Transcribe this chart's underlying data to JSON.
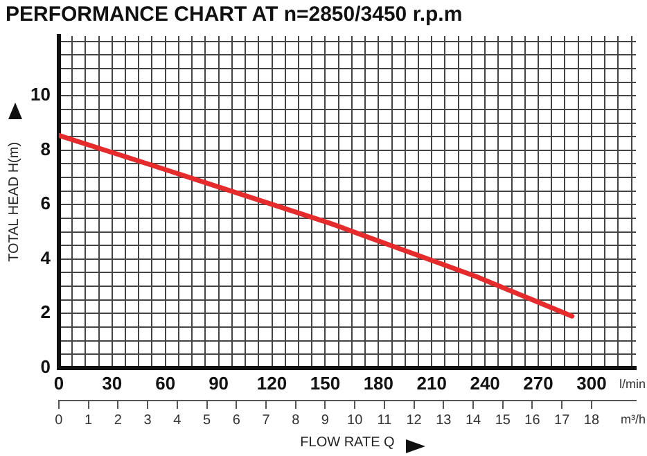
{
  "chart_data": {
    "type": "line",
    "title": "PERFORMANCE CHART AT n=2850/3450 r.p.m",
    "xlabel": "FLOW RATE Q",
    "ylabel": "TOTAL HEAD H(m)",
    "x2label": "m³/h",
    "annotations": [
      "l/min"
    ],
    "x": [
      0,
      51,
      153,
      235,
      289
    ],
    "series": [
      {
        "color": "#e52b2b",
        "values": [
          8.55,
          7.48,
          5.31,
          3.36,
          1.9
        ]
      }
    ],
    "xlim": [
      0,
      325
    ],
    "ylim": [
      0,
      12.2
    ],
    "x2lim": [
      0,
      19.5
    ],
    "xticks": [
      0,
      {
        "value": 7.5,
        "label": null
      },
      {
        "value": 15,
        "label": null
      },
      {
        "value": 22.5,
        "label": null
      },
      30,
      {
        "value": 37.5,
        "label": null
      },
      {
        "value": 45,
        "label": null
      },
      {
        "value": 52.5,
        "label": null
      },
      60,
      {
        "value": 67.5,
        "label": null
      },
      {
        "value": 75,
        "label": null
      },
      {
        "value": 82.5,
        "label": null
      },
      90,
      {
        "value": 97.5,
        "label": null
      },
      {
        "value": 105,
        "label": null
      },
      {
        "value": 112.5,
        "label": null
      },
      120,
      {
        "value": 127.5,
        "label": null
      },
      {
        "value": 135,
        "label": null
      },
      {
        "value": 142.5,
        "label": null
      },
      150,
      {
        "value": 157.5,
        "label": null
      },
      {
        "value": 165,
        "label": null
      },
      {
        "value": 172.5,
        "label": null
      },
      180,
      {
        "value": 187.5,
        "label": null
      },
      {
        "value": 195,
        "label": null
      },
      {
        "value": 202.5,
        "label": null
      },
      210,
      {
        "value": 217.5,
        "label": null
      },
      {
        "value": 225,
        "label": null
      },
      {
        "value": 232.5,
        "label": null
      },
      240,
      {
        "value": 247.5,
        "label": null
      },
      {
        "value": 255,
        "label": null
      },
      {
        "value": 262.5,
        "label": null
      },
      270,
      {
        "value": 277.5,
        "label": null
      },
      {
        "value": 285,
        "label": null
      },
      {
        "value": 292.5,
        "label": null
      },
      300,
      {
        "value": 307.5,
        "label": null
      },
      {
        "value": 315,
        "label": null
      },
      {
        "value": 322.5,
        "label": null
      }
    ],
    "yticks": [
      0,
      {
        "value": 0.5,
        "label": null
      },
      {
        "value": 1,
        "label": null
      },
      {
        "value": 1.5,
        "label": null
      },
      2,
      {
        "value": 2.5,
        "label": null
      },
      {
        "value": 3,
        "label": null
      },
      {
        "value": 3.5,
        "label": null
      },
      4,
      {
        "value": 4.5,
        "label": null
      },
      {
        "value": 5,
        "label": null
      },
      {
        "value": 5.5,
        "label": null
      },
      6,
      {
        "value": 6.5,
        "label": null
      },
      {
        "value": 7,
        "label": null
      },
      {
        "value": 7.5,
        "label": null
      },
      8,
      {
        "value": 8.5,
        "label": null
      },
      {
        "value": 9,
        "label": null
      },
      {
        "value": 9.5,
        "label": null
      },
      10,
      {
        "value": 10.5,
        "label": null
      },
      {
        "value": 11,
        "label": null
      },
      {
        "value": 11.5,
        "label": null
      },
      {
        "value": 12,
        "label": null
      }
    ],
    "x2ticks": [
      0,
      1,
      2,
      3,
      4,
      5,
      6,
      7,
      8,
      9,
      10,
      11,
      12,
      13,
      14,
      15,
      16,
      17,
      18
    ],
    "grid": true
  }
}
